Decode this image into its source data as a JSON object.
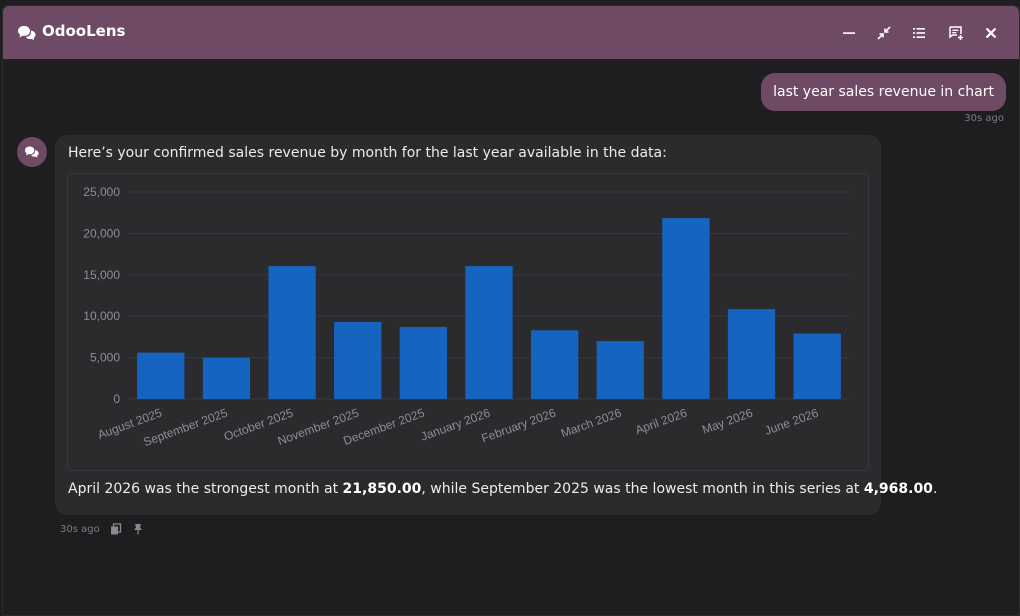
{
  "app": {
    "title": "OdooLens",
    "icons": {
      "app": "chat-bubbles-icon",
      "minimize": "minimize-icon",
      "collapse": "compress-icon",
      "history": "list-icon",
      "new_chat": "new-chat-icon",
      "close": "close-icon"
    }
  },
  "colors": {
    "header": "#6f4a65",
    "background": "#1e1e20",
    "bubble": "#2b2b2e",
    "bar": "#1565c0"
  },
  "user_message": {
    "text": "last year sales revenue in chart",
    "time": "30s ago"
  },
  "bot_message": {
    "intro": "Here’s your confirmed sales revenue by month for the last year available in the data:",
    "summary": {
      "part1": "April 2026 was the strongest month at ",
      "max_value": "21,850.00",
      "part2": ", while September 2025 was the lowest month in this series at ",
      "min_value": "4,968.00",
      "part3": "."
    },
    "time": "30s ago",
    "icons": {
      "copy": "copy-icon",
      "pin": "pin-icon"
    }
  },
  "chart_data": {
    "type": "bar",
    "categories": [
      "August 2025",
      "September 2025",
      "October 2025",
      "November 2025",
      "December 2025",
      "January 2026",
      "February 2026",
      "March 2026",
      "April 2026",
      "May 2026",
      "June 2026"
    ],
    "values": [
      5600,
      4968,
      16050,
      9300,
      8700,
      16050,
      8300,
      7000,
      21850,
      10850,
      7900
    ],
    "ylim": [
      0,
      25000
    ],
    "yticks": [
      0,
      5000,
      10000,
      15000,
      20000,
      25000
    ],
    "ytick_labels": [
      "0",
      "5,000",
      "10,000",
      "15,000",
      "20,000",
      "25,000"
    ],
    "title": "",
    "xlabel": "",
    "ylabel": "",
    "grid": true,
    "legend": "none"
  }
}
